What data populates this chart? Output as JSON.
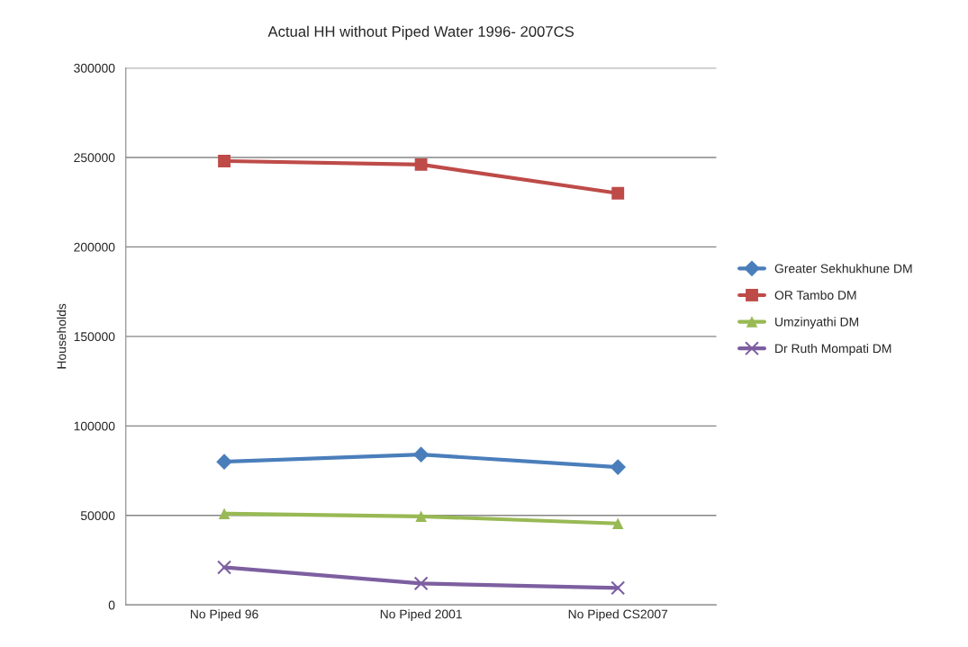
{
  "chart_data": {
    "type": "line",
    "title": "Actual HH without Piped Water 1996- 2007CS",
    "ylabel": "Households",
    "categories": [
      "No Piped 96",
      "No Piped 2001",
      "No Piped CS2007"
    ],
    "series": [
      {
        "name": "Greater Sekhukhune DM",
        "color": "#4a7ebb",
        "marker": "diamond",
        "values": [
          80000,
          84000,
          77000
        ]
      },
      {
        "name": "OR Tambo DM",
        "color": "#be4b48",
        "marker": "square",
        "values": [
          248000,
          246000,
          230000
        ]
      },
      {
        "name": "Umzinyathi DM",
        "color": "#98b954",
        "marker": "triangle",
        "values": [
          51000,
          49500,
          45500
        ]
      },
      {
        "name": "Dr Ruth Mompati DM",
        "color": "#7d5fa0",
        "marker": "cross",
        "values": [
          21000,
          12000,
          9500
        ]
      }
    ],
    "ylim": [
      0,
      300000
    ],
    "yticks": [
      0,
      50000,
      100000,
      150000,
      200000,
      250000,
      300000
    ],
    "grid": "y",
    "legend": "right"
  }
}
